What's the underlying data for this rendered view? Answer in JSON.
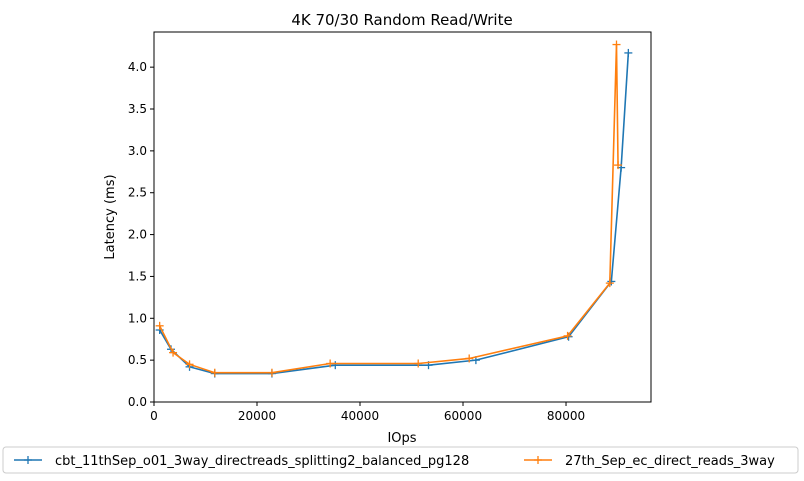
{
  "chart_data": {
    "type": "line",
    "title": "4K 70/30  Random Read/Write",
    "xlabel": "IOps",
    "ylabel": "Latency (ms)",
    "xlim": [
      0,
      96500
    ],
    "ylim": [
      0,
      4.42
    ],
    "xticks": [
      0,
      20000,
      40000,
      60000,
      80000
    ],
    "xtick_labels": [
      "0",
      "20000",
      "40000",
      "60000",
      "80000"
    ],
    "yticks": [
      0,
      0.5,
      1.0,
      1.5,
      2.0,
      2.5,
      3.0,
      3.5,
      4.0
    ],
    "ytick_labels": [
      "0.0",
      "0.5",
      "1.0",
      "1.5",
      "2.0",
      "2.5",
      "3.0",
      "3.5",
      "4.0"
    ],
    "grid": false,
    "legend_placement": "bottom-center, below axes",
    "marker": "+",
    "series": [
      {
        "name": "cbt_11thSep_o01_3way_directreads_splitting2_balanced_pg128",
        "color": "#1f77b4",
        "x": [
          1100,
          3300,
          6900,
          11800,
          22900,
          35200,
          53300,
          62500,
          80500,
          88800,
          90700,
          92100
        ],
        "y": [
          0.86,
          0.63,
          0.42,
          0.34,
          0.34,
          0.44,
          0.44,
          0.5,
          0.78,
          1.44,
          2.8,
          4.17
        ]
      },
      {
        "name": "27th_Sep_ec_direct_reads_3way",
        "color": "#ff7f0e",
        "x": [
          1100,
          3700,
          6900,
          11800,
          22900,
          34200,
          51300,
          61200,
          80300,
          88500,
          89800,
          90100
        ],
        "y": [
          0.91,
          0.59,
          0.45,
          0.35,
          0.35,
          0.46,
          0.46,
          0.52,
          0.79,
          1.42,
          4.27,
          2.83
        ]
      }
    ]
  }
}
